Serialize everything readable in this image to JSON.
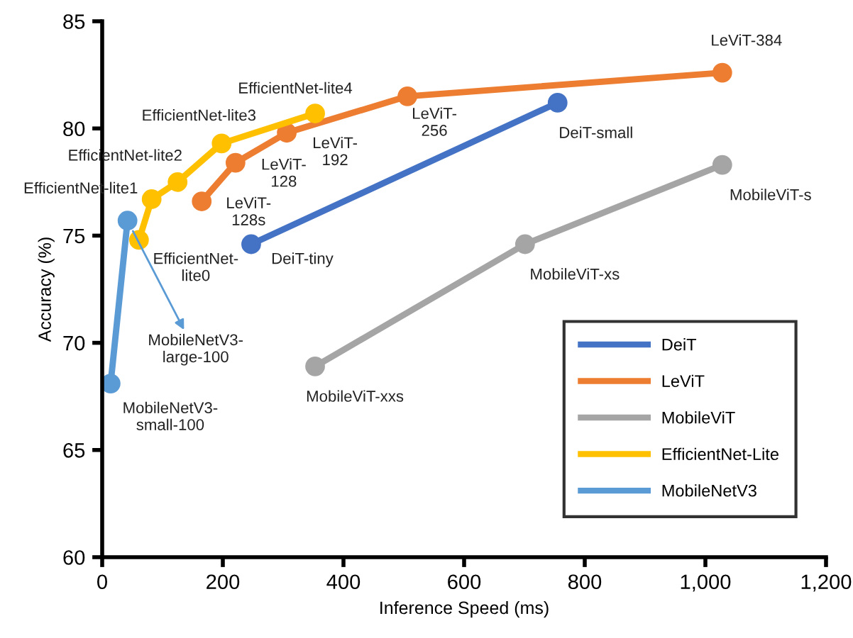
{
  "chart_data": {
    "type": "line",
    "xlabel": "Inference Speed (ms)",
    "ylabel": "Accuracy (%)",
    "xlim": [
      0,
      1200
    ],
    "xticks": [
      0,
      200,
      400,
      600,
      800,
      {
        "value": 1000,
        "label": "1,000"
      },
      {
        "value": 1200,
        "label": "1,200"
      }
    ],
    "ylim": [
      60,
      85
    ],
    "yticks": [
      60,
      65,
      70,
      75,
      80,
      85
    ],
    "grid": false,
    "legend": "bottom right",
    "marker": "circle",
    "line_style": "solid",
    "series": [
      {
        "name": "DeiT",
        "color": "#4472c4",
        "x": [
          247,
          755
        ],
        "values": [
          74.6,
          81.2
        ]
      },
      {
        "name": "LeViT",
        "color": "#ed7d31",
        "x": [
          165,
          221,
          306,
          506,
          1028
        ],
        "values": [
          76.6,
          78.4,
          79.8,
          81.5,
          82.6
        ]
      },
      {
        "name": "MobileViT",
        "color": "#a5a5a5",
        "x": [
          353,
          701,
          1028
        ],
        "values": [
          68.9,
          74.6,
          78.3
        ]
      },
      {
        "name": "EfficientNet-Lite",
        "color": "#ffc000",
        "x": [
          61,
          82,
          125,
          198,
          353
        ],
        "values": [
          74.8,
          76.7,
          77.5,
          79.3,
          80.7
        ]
      },
      {
        "name": "MobileNetV3",
        "color": "#5b9bd5",
        "x": [
          14,
          42
        ],
        "values": [
          68.1,
          75.7
        ]
      }
    ],
    "annotations": [
      {
        "text": "DeiT-tiny",
        "x": 247,
        "y": 74.6
      },
      {
        "text": "DeiT-small",
        "x": 755,
        "y": 81.2
      },
      {
        "text": "LeViT-\n128s",
        "x": 165,
        "y": 76.6
      },
      {
        "text": "LeViT-\n128",
        "x": 221,
        "y": 78.4
      },
      {
        "text": "LeViT-\n192",
        "x": 306,
        "y": 79.8
      },
      {
        "text": "LeViT-\n256",
        "x": 506,
        "y": 81.5
      },
      {
        "text": "LeViT-384",
        "x": 1028,
        "y": 82.6
      },
      {
        "text": "MobileViT-xxs",
        "x": 353,
        "y": 68.9
      },
      {
        "text": "MobileViT-xs",
        "x": 701,
        "y": 74.6
      },
      {
        "text": "MobileViT-s",
        "x": 1028,
        "y": 78.3
      },
      {
        "text": "EfficientNet-\nlite0",
        "x": 61,
        "y": 74.8
      },
      {
        "text": "EfficientNet-lite1",
        "x": 82,
        "y": 76.7
      },
      {
        "text": "EfficientNet-lite2",
        "x": 125,
        "y": 77.5
      },
      {
        "text": "EfficientNet-lite3",
        "x": 198,
        "y": 79.3
      },
      {
        "text": "EfficientNet-lite4",
        "x": 353,
        "y": 80.7
      },
      {
        "text": "MobileNetV3-\nsmall-100",
        "x": 14,
        "y": 68.1
      },
      {
        "text": "MobileNetV3-\nlarge-100",
        "x": 42,
        "y": 75.7
      }
    ]
  }
}
